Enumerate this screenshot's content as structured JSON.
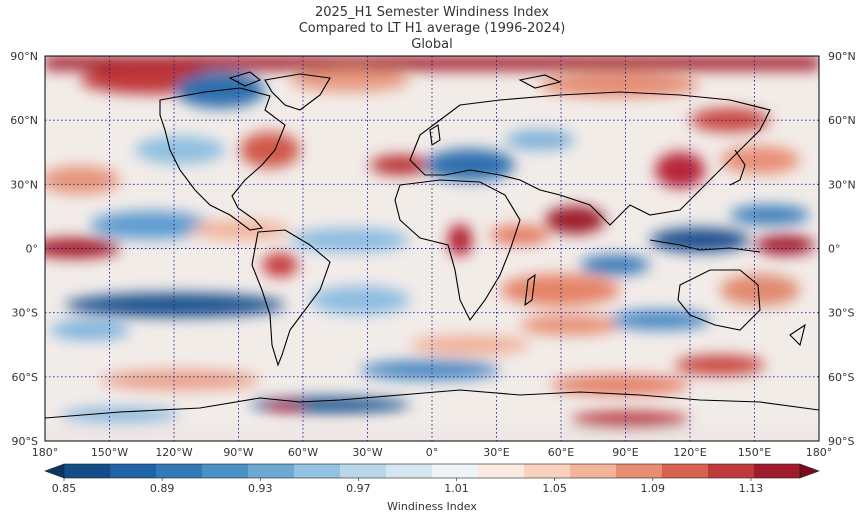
{
  "title": {
    "line1": "2025_H1 Semester Windiness Index",
    "line2": "Compared to LT H1 average (1996-2024)",
    "line3": "Global"
  },
  "map": {
    "projection": "equirectangular",
    "lat_ticks": [
      "90°N",
      "60°N",
      "30°N",
      "0°",
      "30°S",
      "60°S",
      "90°S"
    ],
    "lon_ticks": [
      "180°",
      "150°W",
      "120°W",
      "90°W",
      "60°W",
      "30°W",
      "0°",
      "30°E",
      "60°E",
      "90°E",
      "120°E",
      "150°E",
      "180°"
    ],
    "gridline_color": "#1a1a8c"
  },
  "colorbar": {
    "label": "Windiness Index",
    "ticks": [
      "0.85",
      "0.89",
      "0.93",
      "0.97",
      "1.01",
      "1.05",
      "1.09",
      "1.13"
    ],
    "min": 0.85,
    "max": 1.15,
    "colors": [
      "#0b3563",
      "#134c86",
      "#1f63a6",
      "#3279b8",
      "#4a91c6",
      "#6ca9d3",
      "#93c3e0",
      "#b8d7eb",
      "#d6e7f2",
      "#eef4f8",
      "#fbeae1",
      "#f8d2bf",
      "#f3b49a",
      "#e78e72",
      "#d6634f",
      "#bf3a3a",
      "#a01b2c",
      "#7a0a1e"
    ]
  },
  "colors": {
    "ocean_neutral": "#f3f0ee",
    "red_strong": "#9b1426",
    "red_mid": "#e0806a",
    "blue_strong": "#1b4f8c",
    "blue_mid": "#6aa3d0"
  }
}
